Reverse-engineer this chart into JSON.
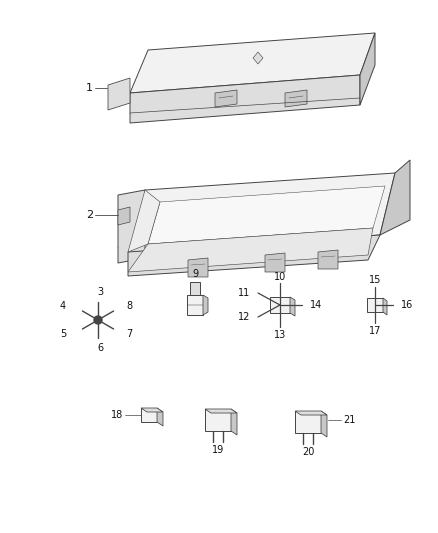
{
  "bg_color": "#ffffff",
  "line_color": "#444444",
  "face_light": "#f2f2f2",
  "face_mid": "#dedede",
  "face_dark": "#c8c8c8",
  "face_darker": "#b8b8b8",
  "text_color": "#111111",
  "fig_width": 4.38,
  "fig_height": 5.33,
  "dpi": 100
}
